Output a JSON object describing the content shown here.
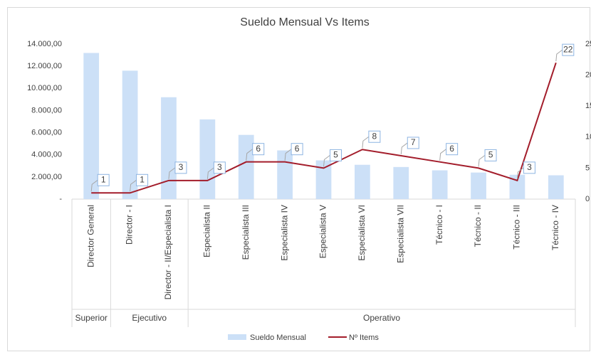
{
  "chart_data": {
    "type": "bar-line",
    "title": "Sueldo Mensual Vs Items",
    "category_groups": [
      {
        "name": "Superior",
        "categories": [
          "Director General"
        ]
      },
      {
        "name": "Ejecutivo",
        "categories": [
          "Director - I",
          "Director - II/Especialista I"
        ]
      },
      {
        "name": "Operativo",
        "categories": [
          "Especialista II",
          "Especialista III",
          "Especialista IV",
          "Especialista V",
          "Especialista VI",
          "Especialista VII",
          "Técnico - I",
          "Técnico - II",
          "Técnico - III",
          "Técnico - IV"
        ]
      }
    ],
    "series": [
      {
        "name": "Sueldo Mensual",
        "type": "bar",
        "color": "#cce0f7",
        "values": [
          13200,
          11600,
          9200,
          7200,
          5800,
          4400,
          3500,
          3100,
          2900,
          2600,
          2400,
          2200,
          2150
        ]
      },
      {
        "name": "Nº Items",
        "type": "line",
        "axis": "y2",
        "color": "#a31d2b",
        "values": [
          1,
          1,
          3,
          3,
          6,
          6,
          5,
          8,
          7,
          6,
          5,
          3,
          22
        ]
      }
    ],
    "ylim": [
      0,
      14000
    ],
    "yticks": [
      {
        "value": 0,
        "label": "-"
      },
      {
        "value": 2000,
        "label": "2.000,00"
      },
      {
        "value": 4000,
        "label": "4.000,00"
      },
      {
        "value": 6000,
        "label": "6.000,00"
      },
      {
        "value": 8000,
        "label": "8.000,00"
      },
      {
        "value": 10000,
        "label": "10.000,00"
      },
      {
        "value": 12000,
        "label": "12.000,00"
      },
      {
        "value": 14000,
        "label": "14.000,00"
      }
    ],
    "y2lim": [
      0,
      25
    ],
    "y2ticks": [
      0,
      5,
      10,
      15,
      20,
      25
    ],
    "legend": "bottom"
  }
}
